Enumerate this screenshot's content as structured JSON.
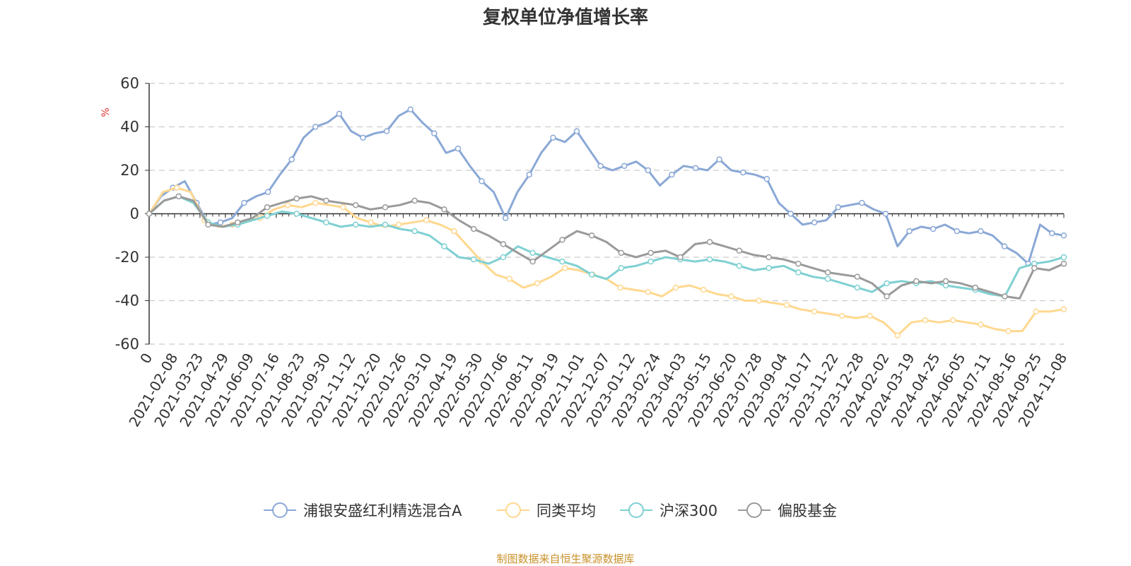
{
  "chart_data": {
    "type": "line",
    "title": "复权单位净值增长率",
    "ylabel": "%",
    "xlabel": "",
    "ylim": [
      -60,
      60
    ],
    "yticks": [
      60,
      40,
      20,
      0,
      -20,
      -40,
      -60
    ],
    "x_tick_labels": [
      "0",
      "2021-02-08",
      "2021-03-23",
      "2021-04-29",
      "2021-06-09",
      "2021-07-16",
      "2021-08-23",
      "2021-09-30",
      "2021-11-12",
      "2021-12-20",
      "2022-01-26",
      "2022-03-10",
      "2022-04-19",
      "2022-05-30",
      "2022-07-06",
      "2022-08-11",
      "2022-09-19",
      "2022-11-01",
      "2022-12-07",
      "2023-01-12",
      "2023-02-24",
      "2023-04-03",
      "2023-05-15",
      "2023-06-20",
      "2023-07-28",
      "2023-09-04",
      "2023-10-17",
      "2023-11-22",
      "2023-12-28",
      "2024-02-02",
      "2024-03-19",
      "2024-04-25",
      "2024-06-05",
      "2024-07-11",
      "2024-08-16",
      "2024-09-25",
      "2024-11-08"
    ],
    "grid": true,
    "legend_position": "bottom",
    "series": [
      {
        "name": "浦银安盛红利精选混合A",
        "color": "#8aa8d6",
        "values": [
          0,
          8,
          12,
          15,
          5,
          -5,
          -4,
          -2,
          5,
          8,
          10,
          18,
          25,
          35,
          40,
          42,
          46,
          38,
          35,
          37,
          38,
          45,
          48,
          42,
          37,
          28,
          30,
          22,
          15,
          10,
          -2,
          10,
          18,
          28,
          35,
          33,
          38,
          30,
          22,
          20,
          22,
          24,
          20,
          13,
          18,
          22,
          21,
          20,
          25,
          20,
          19,
          18,
          16,
          5,
          0,
          -5,
          -4,
          -3,
          3,
          4,
          5,
          2,
          0,
          -15,
          -8,
          -6,
          -7,
          -5,
          -8,
          -9,
          -8,
          -10,
          -15,
          -18,
          -23,
          -5,
          -9,
          -10
        ]
      },
      {
        "name": "同类平均",
        "color": "#ffd88f",
        "values": [
          0,
          10,
          12,
          10,
          -3,
          -6,
          -5,
          -3,
          -2,
          2,
          4,
          3,
          5,
          4,
          3,
          -2,
          -4,
          -6,
          -5,
          -4,
          -3,
          -5,
          -8,
          -15,
          -22,
          -28,
          -30,
          -34,
          -32,
          -29,
          -25,
          -26,
          -28,
          -30,
          -34,
          -35,
          -36,
          -38,
          -34,
          -33,
          -35,
          -37,
          -38,
          -40,
          -40,
          -41,
          -42,
          -44,
          -45,
          -46,
          -47,
          -48,
          -47,
          -50,
          -56,
          -50,
          -49,
          -50,
          -49,
          -50,
          -51,
          -53,
          -54,
          -54,
          -45,
          -45,
          -44
        ]
      },
      {
        "name": "沪深300",
        "color": "#7fd0d2",
        "values": [
          0,
          6,
          8,
          5,
          -4,
          -6,
          -5,
          -3,
          -1,
          1,
          0,
          -2,
          -4,
          -6,
          -5,
          -6,
          -5,
          -7,
          -8,
          -10,
          -15,
          -20,
          -21,
          -23,
          -20,
          -15,
          -18,
          -20,
          -22,
          -24,
          -28,
          -30,
          -25,
          -24,
          -22,
          -20,
          -21,
          -22,
          -21,
          -22,
          -24,
          -26,
          -25,
          -24,
          -27,
          -29,
          -30,
          -32,
          -34,
          -36,
          -32,
          -31,
          -32,
          -31,
          -33,
          -34,
          -35,
          -37,
          -38,
          -25,
          -23,
          -22,
          -20
        ]
      },
      {
        "name": "偏股基金",
        "color": "#9a9a9a",
        "values": [
          0,
          6,
          8,
          6,
          -5,
          -6,
          -4,
          -2,
          3,
          5,
          7,
          8,
          6,
          5,
          4,
          2,
          3,
          4,
          6,
          5,
          2,
          -3,
          -7,
          -10,
          -14,
          -18,
          -22,
          -17,
          -12,
          -8,
          -10,
          -13,
          -18,
          -20,
          -18,
          -17,
          -20,
          -14,
          -13,
          -15,
          -17,
          -19,
          -20,
          -21,
          -23,
          -25,
          -27,
          -28,
          -29,
          -32,
          -38,
          -33,
          -31,
          -32,
          -31,
          -32,
          -34,
          -36,
          -38,
          -39,
          -25,
          -26,
          -23
        ]
      }
    ]
  },
  "source_note": "制图数据来自恒生聚源数据库"
}
